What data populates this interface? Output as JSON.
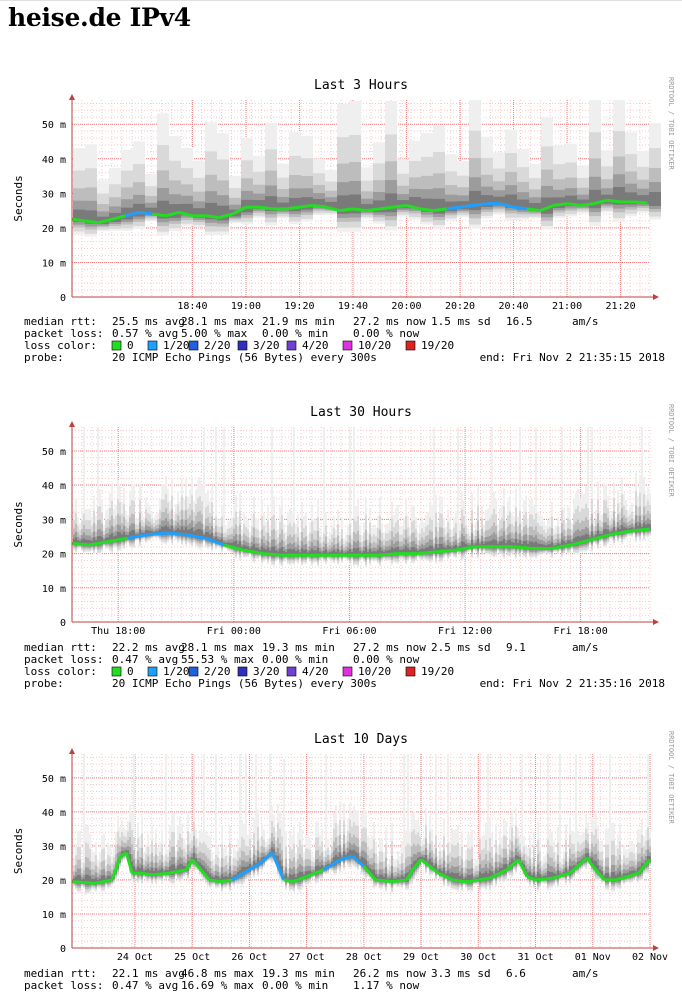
{
  "page": {
    "heading": "heise.de IPv4"
  },
  "colors": {
    "median": "#22dd22",
    "median_blue": "#1ea0ff",
    "grid_major": "#f08080",
    "grid_minor": "#f7c8c8",
    "axis": "#c04040",
    "smoke": [
      "#efefef",
      "#d9d9d9",
      "#bdbdbd",
      "#9c9c9c",
      "#7a7a7a",
      "#555555"
    ]
  },
  "legend": {
    "loss_label": "loss color:",
    "items": [
      {
        "label": "0",
        "color": "#22dd22"
      },
      {
        "label": "1/20",
        "color": "#1ea0ff"
      },
      {
        "label": "2/20",
        "color": "#1f5fe0"
      },
      {
        "label": "3/20",
        "color": "#3030c0"
      },
      {
        "label": "4/20",
        "color": "#7040d0"
      },
      {
        "label": "10/20",
        "color": "#e030e0"
      },
      {
        "label": "19/20",
        "color": "#dd2222"
      }
    ],
    "probe_label": "probe:",
    "probe_text": "20 ICMP Echo Pings (56 Bytes) every 300s"
  },
  "watermark": "RRDTOOL / TOBI OETIKER",
  "chart_data": [
    {
      "type": "line",
      "title": "Last 3 Hours",
      "ylabel": "Seconds",
      "ylim": [
        0,
        57
      ],
      "y_ticks": [
        0,
        10,
        20,
        30,
        40,
        50
      ],
      "y_tick_labels": [
        "0",
        "10 m",
        "20 m",
        "30 m",
        "40 m",
        "50 m"
      ],
      "x_range_min": [
        175,
        391
      ],
      "x_ticks": [
        {
          "label": "18:40",
          "x": 220
        },
        {
          "label": "19:00",
          "x": 240
        },
        {
          "label": "19:20",
          "x": 260
        },
        {
          "label": "19:40",
          "x": 280
        },
        {
          "label": "20:00",
          "x": 300
        },
        {
          "label": "20:20",
          "x": 320
        },
        {
          "label": "20:40",
          "x": 340
        },
        {
          "label": "21:00",
          "x": 360
        },
        {
          "label": "21:20",
          "x": 380
        }
      ],
      "series_median_ms": {
        "x": [
          175,
          180,
          185,
          190,
          195,
          200,
          205,
          210,
          215,
          220,
          225,
          230,
          235,
          240,
          245,
          250,
          255,
          260,
          265,
          270,
          275,
          280,
          285,
          290,
          295,
          300,
          305,
          310,
          315,
          320,
          325,
          330,
          335,
          340,
          345,
          350,
          355,
          360,
          365,
          370,
          375,
          380,
          385,
          390
        ],
        "values": [
          22.5,
          22.0,
          21.5,
          22.5,
          23.5,
          24.5,
          24.0,
          23.5,
          24.5,
          23.5,
          23.5,
          23.0,
          24.0,
          26.0,
          26.0,
          25.5,
          25.5,
          26.0,
          26.5,
          26.0,
          25.0,
          25.5,
          25.0,
          25.5,
          26.0,
          26.5,
          25.5,
          25.0,
          25.5,
          26.0,
          26.5,
          27.0,
          27.0,
          26.0,
          25.5,
          25.0,
          26.5,
          27.0,
          26.5,
          27.0,
          28.0,
          27.5,
          27.5,
          27.2
        ],
        "blue_ranges": [
          [
            195,
            205
          ],
          [
            315,
            345
          ]
        ]
      },
      "summary": {
        "rtt": [
          "median rtt:",
          "25.5 ms avg",
          "28.1 ms max",
          "21.9 ms min",
          "27.2 ms now",
          "1.5 ms sd",
          "16.5",
          "am/s"
        ],
        "loss": [
          "packet loss:",
          "0.57 % avg",
          "5.00 % max",
          "0.00 % min",
          "0.00 % now"
        ],
        "end": "end: Fri Nov  2 21:35:15 2018"
      }
    },
    {
      "type": "line",
      "title": "Last 30 Hours",
      "ylabel": "Seconds",
      "ylim": [
        0,
        57
      ],
      "y_ticks": [
        0,
        10,
        20,
        30,
        40,
        50
      ],
      "y_tick_labels": [
        "0",
        "10 m",
        "20 m",
        "30 m",
        "40 m",
        "50 m"
      ],
      "x_range_h": [
        15.6,
        45.6
      ],
      "x_ticks": [
        {
          "label": "Thu 18:00",
          "x": 18
        },
        {
          "label": "Fri 00:00",
          "x": 24
        },
        {
          "label": "Fri 06:00",
          "x": 30
        },
        {
          "label": "Fri 12:00",
          "x": 36
        },
        {
          "label": "Fri 18:00",
          "x": 42
        }
      ],
      "series_median_ms": {
        "x": [
          15.6,
          16.5,
          17.5,
          18.5,
          19.5,
          20.5,
          21.5,
          22.5,
          23.5,
          24.5,
          25.5,
          26.5,
          27.5,
          28.5,
          29.5,
          30.5,
          31.5,
          32.5,
          33.5,
          34.5,
          35.5,
          36.5,
          37.5,
          38.5,
          39.5,
          40.5,
          41.5,
          42.5,
          43.5,
          44.5,
          45.6
        ],
        "values": [
          23,
          22.5,
          23.5,
          24.5,
          25.5,
          26,
          25.5,
          24.5,
          22.5,
          21,
          20,
          19.5,
          19.5,
          19.5,
          19.5,
          19.5,
          19.5,
          20,
          20,
          20.5,
          21,
          22,
          22,
          22,
          21.5,
          21.5,
          22.5,
          24,
          25.5,
          26.5,
          27.2
        ],
        "blue_ranges": [
          [
            19,
            23
          ]
        ]
      },
      "summary": {
        "rtt": [
          "median rtt:",
          "22.2 ms avg",
          "28.1 ms max",
          "19.3 ms min",
          "27.2 ms now",
          "2.5 ms sd",
          "9.1",
          "am/s"
        ],
        "loss": [
          "packet loss:",
          "0.47 % avg",
          "55.53 % max",
          "0.00 % min",
          "0.00 % now"
        ],
        "end": "end: Fri Nov  2 21:35:16 2018"
      }
    },
    {
      "type": "line",
      "title": "Last 10 Days",
      "ylabel": "Seconds",
      "ylim": [
        0,
        57
      ],
      "y_ticks": [
        0,
        10,
        20,
        30,
        40,
        50
      ],
      "y_tick_labels": [
        "0",
        "10 m",
        "20 m",
        "30 m",
        "40 m",
        "50 m"
      ],
      "x_range_day": [
        22.9,
        33.0
      ],
      "x_ticks": [
        {
          "label": "24 Oct",
          "x": 24
        },
        {
          "label": "25 Oct",
          "x": 25
        },
        {
          "label": "26 Oct",
          "x": 26
        },
        {
          "label": "27 Oct",
          "x": 27
        },
        {
          "label": "28 Oct",
          "x": 28
        },
        {
          "label": "29 Oct",
          "x": 29
        },
        {
          "label": "30 Oct",
          "x": 30
        },
        {
          "label": "31 Oct",
          "x": 31
        },
        {
          "label": "01 Nov",
          "x": 32
        },
        {
          "label": "02 Nov",
          "x": 33
        }
      ],
      "series_median_ms": {
        "x": [
          22.9,
          23.3,
          23.6,
          23.75,
          23.85,
          23.95,
          24.1,
          24.3,
          24.6,
          24.9,
          25.0,
          25.1,
          25.3,
          25.5,
          25.7,
          26.0,
          26.2,
          26.4,
          26.6,
          26.75,
          26.85,
          27.0,
          27.3,
          27.6,
          27.8,
          28.0,
          28.2,
          28.5,
          28.75,
          28.85,
          29.0,
          29.3,
          29.55,
          29.75,
          29.85,
          30.0,
          30.2,
          30.5,
          30.7,
          30.85,
          31.0,
          31.3,
          31.6,
          31.8,
          31.9,
          32.0,
          32.2,
          32.4,
          32.6,
          32.8,
          33.0
        ],
        "values": [
          19.5,
          19,
          20,
          27,
          28,
          22,
          22,
          21.5,
          22,
          23,
          26,
          24,
          20,
          19.5,
          20,
          23,
          25,
          28,
          20,
          19.5,
          20,
          21,
          23,
          26,
          27,
          24,
          20,
          19.5,
          20,
          23,
          26,
          22,
          20,
          19.5,
          19.5,
          20,
          20.5,
          23,
          26,
          21,
          20,
          20.5,
          22,
          25,
          26.5,
          24,
          20,
          20,
          21,
          22,
          26
        ],
        "blue_ranges": [
          [
            25.7,
            26.6
          ],
          [
            27.3,
            27.9
          ]
        ]
      },
      "summary": {
        "rtt": [
          "median rtt:",
          "22.1 ms avg",
          "46.8 ms max",
          "19.3 ms min",
          "26.2 ms now",
          "3.3 ms sd",
          "6.6",
          "am/s"
        ],
        "loss": [
          "packet loss:",
          "0.47 % avg",
          "16.69 % max",
          "0.00 % min",
          "1.17 % now"
        ],
        "end": ""
      }
    }
  ]
}
